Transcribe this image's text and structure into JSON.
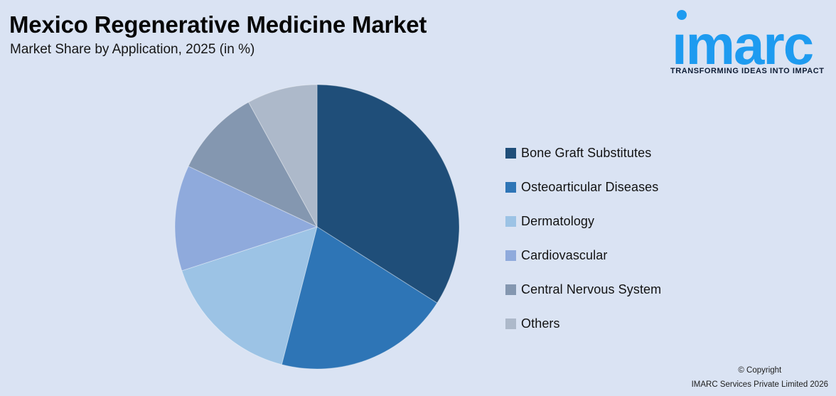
{
  "page": {
    "title": "Mexico Regenerative Medicine Market",
    "subtitle": "Market Share by Application, 2025 (in %)",
    "background_color": "#DAE3F3"
  },
  "logo": {
    "wordmark": "imarc",
    "wordmark_dotless": "ımarc",
    "tagline": "TRANSFORMING IDEAS INTO IMPACT",
    "brand_color": "#1E9BF0",
    "tagline_color": "#0F1D35"
  },
  "chart_data": {
    "type": "pie",
    "title": "Mexico Regenerative Medicine Market",
    "subtitle": "Market Share by Application, 2025 (in %)",
    "unit": "percent",
    "categories": [
      "Bone Graft Substitutes",
      "Osteoarticular Diseases",
      "Dermatology",
      "Cardiovascular",
      "Central Nervous System",
      "Others"
    ],
    "values": [
      34,
      20,
      16,
      12,
      10,
      8
    ],
    "colors": [
      "#1F4E79",
      "#2E75B6",
      "#9CC3E5",
      "#8FAADC",
      "#8497B0",
      "#ADB9CA"
    ],
    "start_angle_deg": 0,
    "direction": "clockwise",
    "legend_position": "right",
    "data_labels_visible": false
  },
  "footer": {
    "copyright_line1": "© Copyright",
    "copyright_line2": "IMARC Services Private Limited 2026"
  }
}
